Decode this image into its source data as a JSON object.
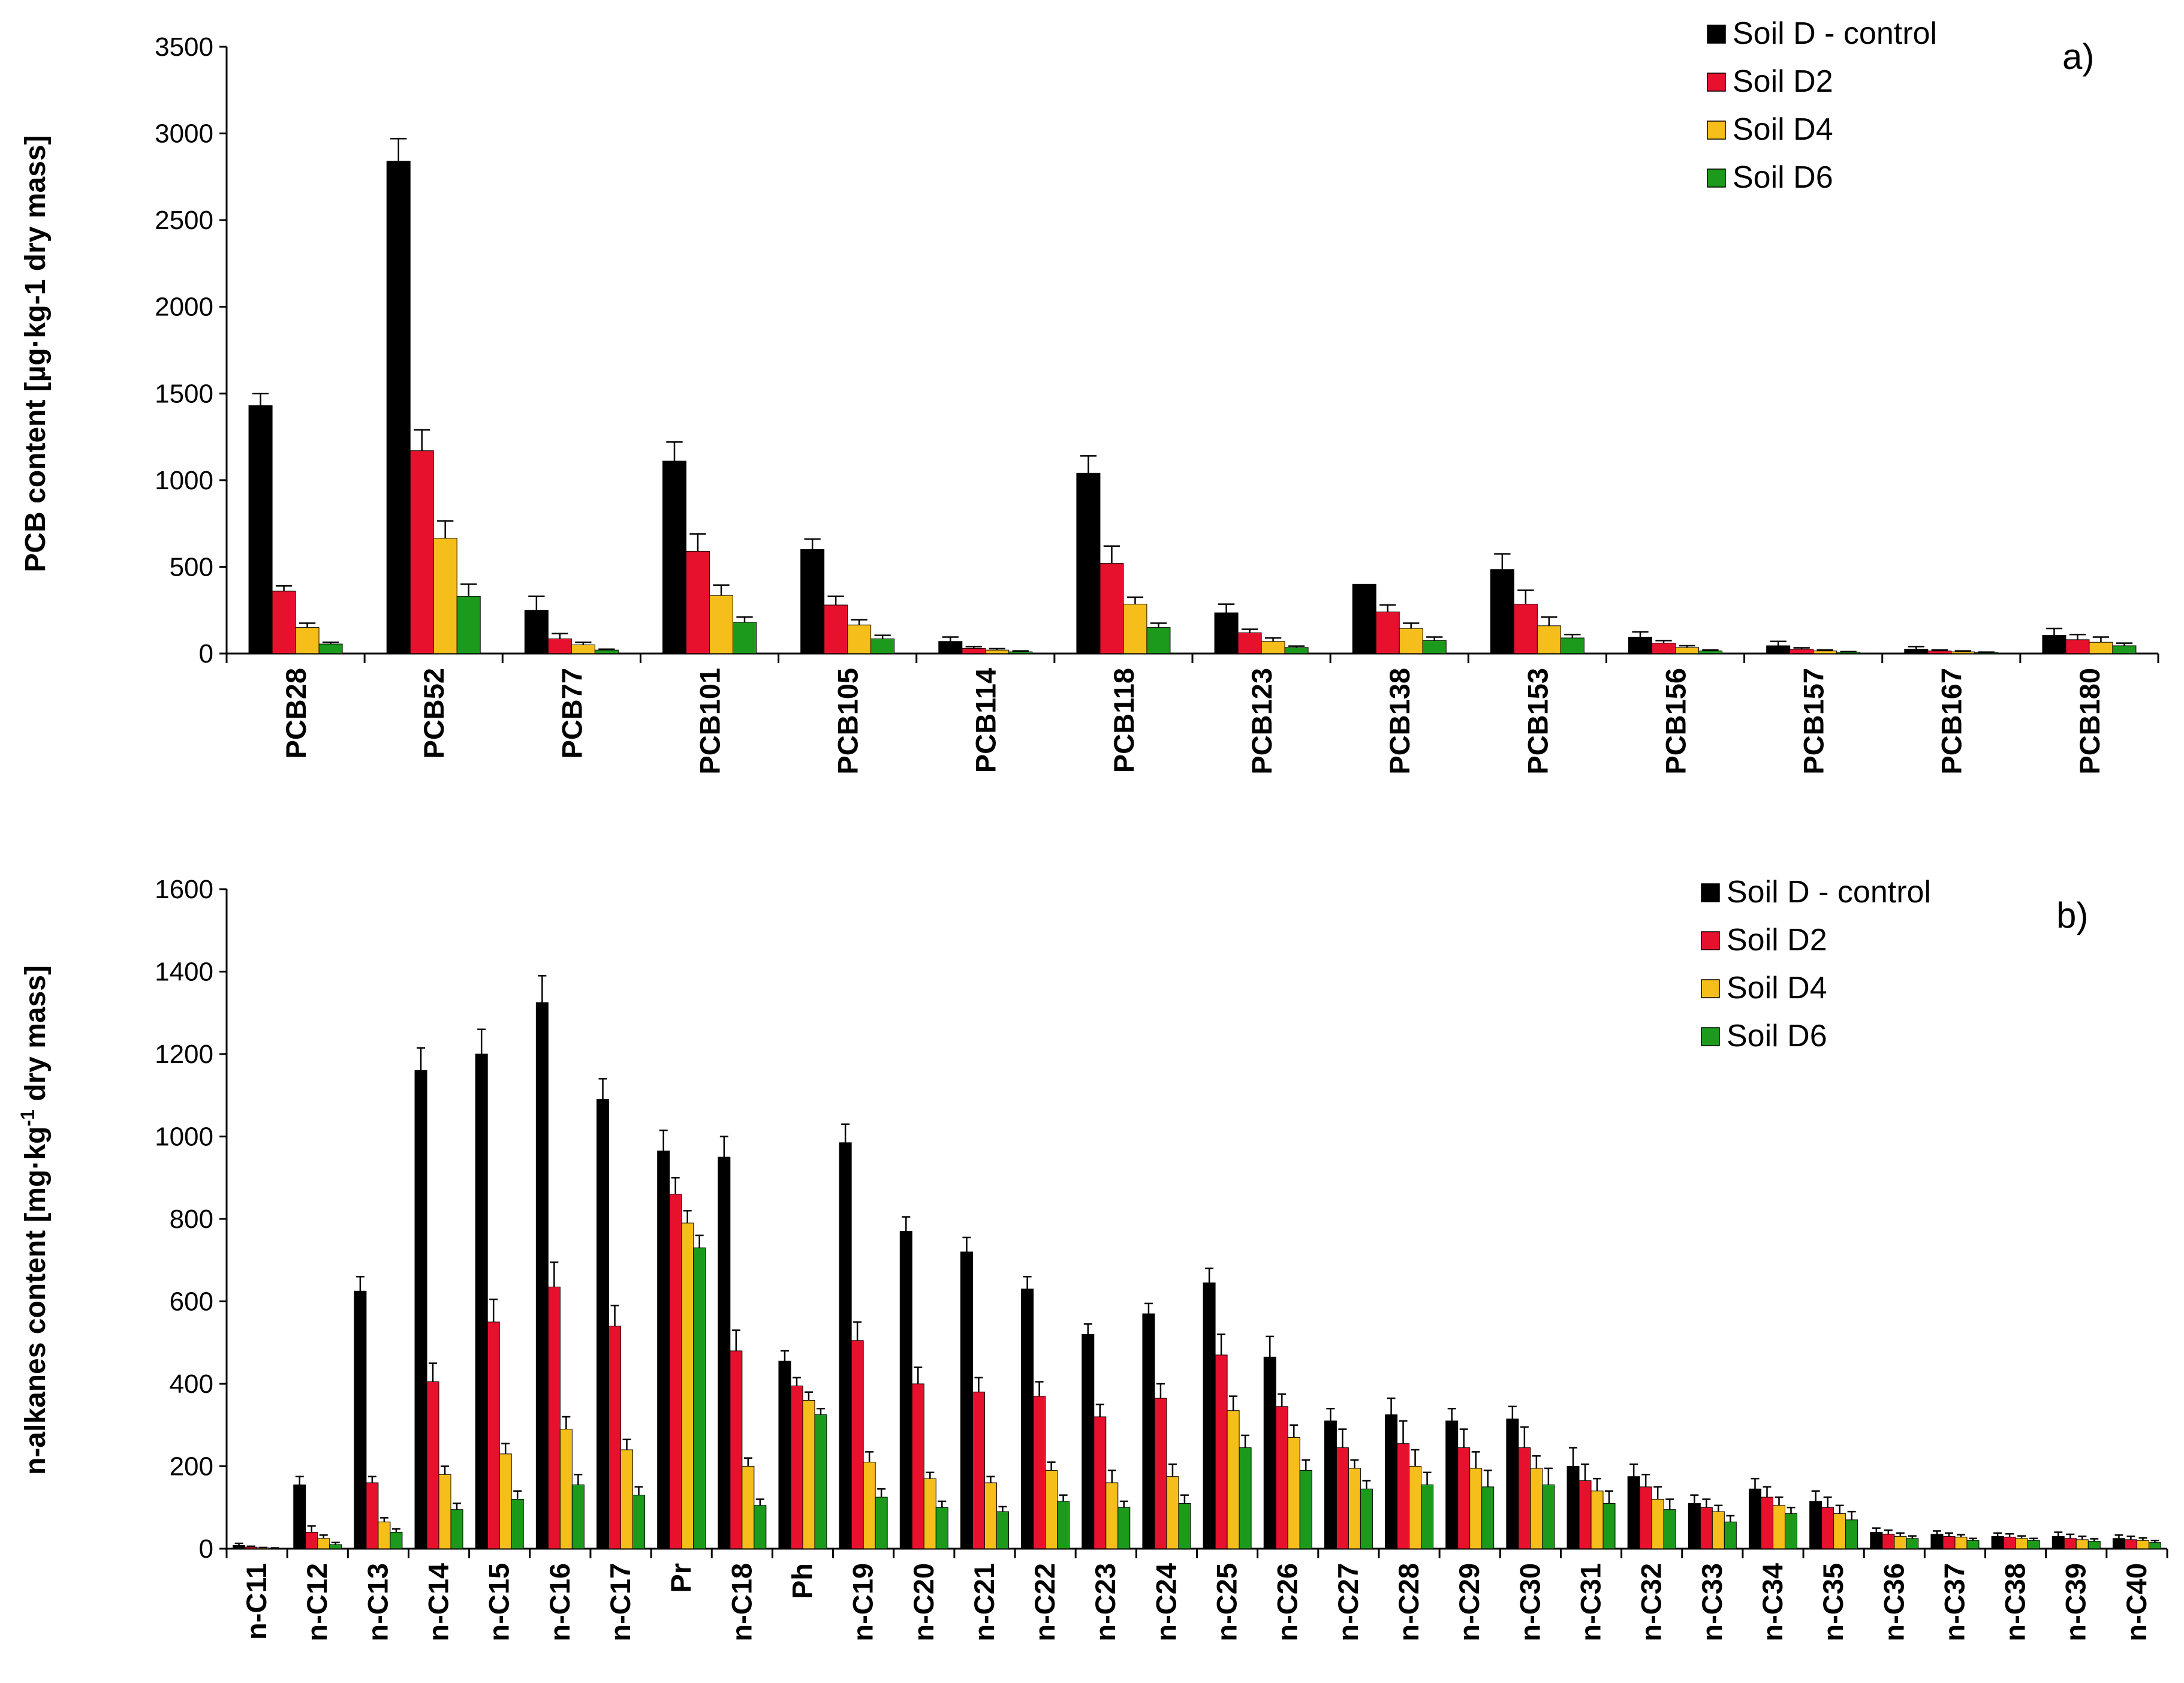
{
  "chart_data": [
    {
      "type": "bar",
      "panel_label": "a)",
      "title": "",
      "xlabel": "",
      "ylabel": "PCB content [µg·kg-1 dry mass]",
      "ylim": [
        0,
        3500
      ],
      "yticks": [
        0,
        500,
        1000,
        1500,
        2000,
        2500,
        3000,
        3500
      ],
      "legend_position": "top-right",
      "categories": [
        "PCB28",
        "PCB52",
        "PCB77",
        "PCB101",
        "PCB105",
        "PCB114",
        "PCB118",
        "PCB123",
        "PCB138",
        "PCB153",
        "PCB156",
        "PCB157",
        "PCB167",
        "PCB180"
      ],
      "series": [
        {
          "name": "Soil D - control",
          "color": "#000000",
          "values": [
            1430,
            2840,
            250,
            1110,
            600,
            70,
            1040,
            235,
            400,
            485,
            95,
            45,
            25,
            105
          ],
          "errors": [
            70,
            130,
            80,
            110,
            60,
            25,
            100,
            50,
            0,
            90,
            30,
            25,
            15,
            40
          ]
        },
        {
          "name": "Soil D2",
          "color": "#e8112d",
          "values": [
            360,
            1170,
            85,
            590,
            280,
            30,
            520,
            120,
            240,
            285,
            60,
            25,
            15,
            80
          ],
          "errors": [
            30,
            120,
            30,
            100,
            50,
            10,
            100,
            20,
            40,
            80,
            15,
            8,
            5,
            30
          ]
        },
        {
          "name": "Soil D4",
          "color": "#f6be1a",
          "values": [
            150,
            665,
            50,
            335,
            165,
            20,
            285,
            70,
            145,
            160,
            35,
            15,
            10,
            65
          ],
          "errors": [
            25,
            100,
            15,
            60,
            30,
            8,
            40,
            20,
            30,
            50,
            10,
            5,
            5,
            30
          ]
        },
        {
          "name": "Soil D6",
          "color": "#1c9a1c",
          "values": [
            55,
            330,
            20,
            180,
            85,
            10,
            150,
            35,
            75,
            90,
            15,
            8,
            5,
            45
          ],
          "errors": [
            10,
            70,
            5,
            30,
            20,
            5,
            25,
            8,
            20,
            20,
            5,
            3,
            3,
            15
          ]
        }
      ]
    },
    {
      "type": "bar",
      "panel_label": "b)",
      "title": "",
      "xlabel": "",
      "ylabel_main": "n-alkanes content [mg·kg",
      "ylabel_sup": "-1",
      "ylabel_tail": " dry mass]",
      "ylim": [
        0,
        1600
      ],
      "yticks": [
        0,
        200,
        400,
        600,
        800,
        1000,
        1200,
        1400,
        1600
      ],
      "legend_position": "top-right",
      "categories": [
        "n-C11",
        "n-C12",
        "n-C13",
        "n-C14",
        "n-C15",
        "n-C16",
        "n-C17",
        "Pr",
        "n-C18",
        "Ph",
        "n-C19",
        "n-C20",
        "n-C21",
        "n-C22",
        "n-C23",
        "n-C24",
        "n-C25",
        "n-C26",
        "n-C27",
        "n-C28",
        "n-C29",
        "n-C30",
        "n-C31",
        "n-C32",
        "n-C33",
        "n-C34",
        "n-C35",
        "n-C36",
        "n-C37",
        "n-C38",
        "n-C39",
        "n-C40"
      ],
      "series": [
        {
          "name": "Soil D - control",
          "color": "#000000",
          "values": [
            8,
            155,
            625,
            1160,
            1200,
            1325,
            1090,
            965,
            950,
            455,
            985,
            770,
            720,
            630,
            520,
            570,
            645,
            465,
            310,
            325,
            310,
            315,
            200,
            175,
            110,
            145,
            115,
            40,
            35,
            30,
            30,
            25
          ],
          "errors": [
            5,
            20,
            35,
            55,
            60,
            65,
            50,
            50,
            50,
            25,
            45,
            35,
            35,
            30,
            25,
            25,
            35,
            50,
            30,
            40,
            30,
            30,
            45,
            30,
            20,
            25,
            25,
            10,
            8,
            8,
            10,
            8
          ]
        },
        {
          "name": "Soil D2",
          "color": "#e8112d",
          "values": [
            4,
            40,
            160,
            405,
            550,
            635,
            540,
            860,
            480,
            395,
            505,
            400,
            380,
            370,
            320,
            365,
            470,
            345,
            245,
            255,
            245,
            245,
            165,
            150,
            100,
            125,
            100,
            35,
            30,
            28,
            25,
            22
          ],
          "errors": [
            2,
            15,
            15,
            45,
            55,
            60,
            50,
            40,
            50,
            20,
            45,
            40,
            35,
            35,
            30,
            35,
            50,
            30,
            45,
            55,
            45,
            50,
            40,
            30,
            20,
            25,
            25,
            10,
            8,
            8,
            10,
            8
          ]
        },
        {
          "name": "Soil D4",
          "color": "#f6be1a",
          "values": [
            2,
            25,
            65,
            180,
            230,
            290,
            240,
            790,
            200,
            360,
            210,
            170,
            160,
            190,
            160,
            175,
            335,
            270,
            195,
            200,
            195,
            195,
            140,
            120,
            90,
            105,
            85,
            30,
            28,
            25,
            22,
            20
          ],
          "errors": [
            1,
            8,
            10,
            20,
            25,
            30,
            25,
            30,
            20,
            20,
            25,
            15,
            15,
            20,
            30,
            30,
            35,
            30,
            20,
            40,
            40,
            30,
            30,
            30,
            15,
            20,
            20,
            8,
            6,
            6,
            8,
            6
          ]
        },
        {
          "name": "Soil D6",
          "color": "#1c9a1c",
          "values": [
            1,
            10,
            40,
            95,
            120,
            155,
            130,
            730,
            105,
            325,
            125,
            100,
            90,
            115,
            100,
            110,
            245,
            190,
            145,
            155,
            150,
            155,
            110,
            95,
            65,
            85,
            70,
            25,
            20,
            20,
            18,
            15
          ],
          "errors": [
            1,
            5,
            8,
            15,
            20,
            25,
            20,
            30,
            15,
            15,
            20,
            15,
            12,
            15,
            15,
            20,
            30,
            25,
            20,
            30,
            40,
            40,
            30,
            25,
            15,
            15,
            20,
            6,
            5,
            5,
            6,
            5
          ]
        }
      ]
    }
  ]
}
